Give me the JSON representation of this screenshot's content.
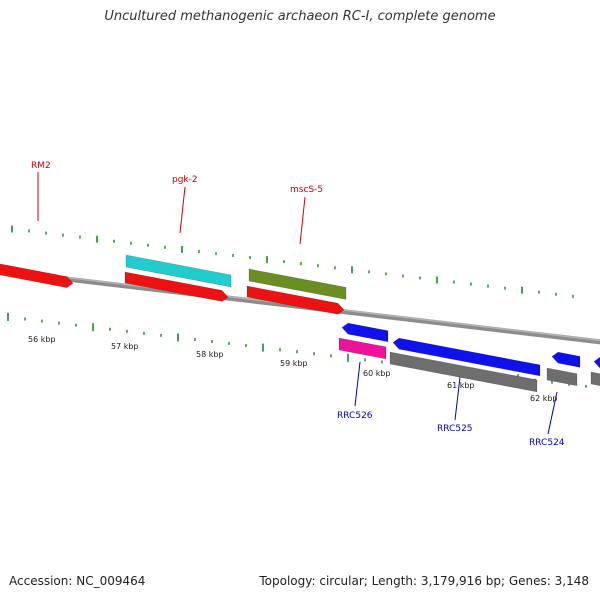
{
  "title": "Uncultured methanogenic archaeon RC-I, complete genome",
  "footer": {
    "accession": "Accession: NC_009464",
    "summary": "Topology: circular; Length: 3,179,916 bp; Genes: 3,148"
  },
  "colors": {
    "backbone": "#8c8c8c",
    "tick": "#1a8a1a",
    "forward_label": "#cc0000",
    "reverse_label": "#0000bb",
    "gene_red": "#ee1111",
    "gene_cyan": "#22cccc",
    "gene_olive": "#6b8e23",
    "gene_blue": "#1111ee",
    "gene_magenta": "#ee1199",
    "gene_gray": "#6e6e6e"
  },
  "scale_labels": [
    {
      "text": "56 kbp",
      "kbp": 56
    },
    {
      "text": "57 kbp",
      "kbp": 57
    },
    {
      "text": "58 kbp",
      "kbp": 58
    },
    {
      "text": "59 kbp",
      "kbp": 59
    },
    {
      "text": "60 kbp",
      "kbp": 60
    },
    {
      "text": "61 kbp",
      "kbp": 61
    },
    {
      "text": "62 kbp",
      "kbp": 62
    }
  ],
  "gene_labels": {
    "forward": [
      {
        "text": "RM2"
      },
      {
        "text": "pgk-2"
      },
      {
        "text": "mscS-5"
      }
    ],
    "reverse": [
      {
        "text": "RRC526"
      },
      {
        "text": "RRC525"
      },
      {
        "text": "RRC524"
      }
    ]
  }
}
